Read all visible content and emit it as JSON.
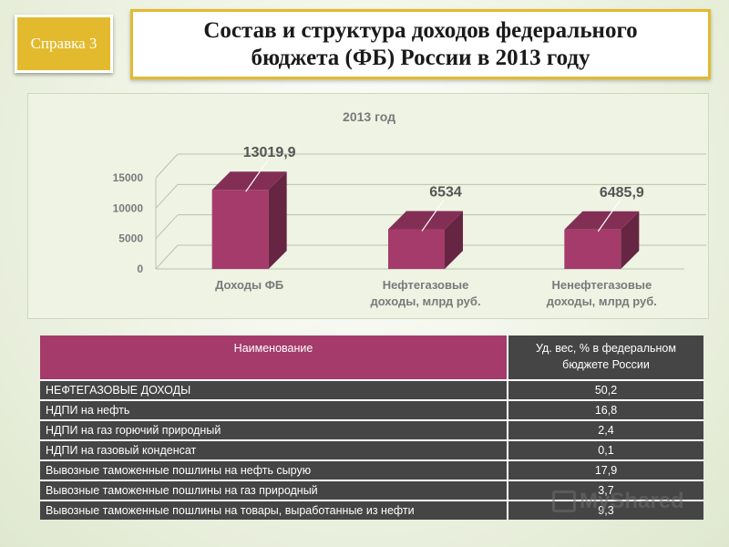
{
  "badge": {
    "label": "Справка 3"
  },
  "title": {
    "line1": "Состав и структура доходов федерального",
    "line2": "бюджета (ФБ) России в 2013 году"
  },
  "chart_data": {
    "type": "bar",
    "title": "2013 год",
    "categories": [
      [
        "Доходы ФБ"
      ],
      [
        "Нефтегазовые",
        "доходы, млрд руб."
      ],
      [
        "Ненефтегазовые",
        "доходы, млрд руб."
      ]
    ],
    "values": [
      13019.9,
      6534,
      6485.9
    ],
    "data_labels": [
      "13019,9",
      "6534",
      "6485,9"
    ],
    "yticks": [
      0,
      5000,
      10000,
      15000
    ],
    "ylim": [
      0,
      15000
    ],
    "bar_color": "#a43b6a",
    "grid": true
  },
  "table": {
    "header": {
      "name": "Наименование",
      "value_line1": "Уд. вес, % в федеральном",
      "value_line2": "бюджете России"
    },
    "rows": [
      {
        "name": "НЕФТЕГАЗОВЫЕ ДОХОДЫ",
        "value": "50,2"
      },
      {
        "name": "НДПИ на нефть",
        "value": "16,8"
      },
      {
        "name": "НДПИ на газ горючий природный",
        "value": "2,4"
      },
      {
        "name": "НДПИ на газовый конденсат",
        "value": "0,1"
      },
      {
        "name": "Вывозные таможенные пошлины на нефть сырую",
        "value": "17,9"
      },
      {
        "name": "Вывозные таможенные пошлины на газ природный",
        "value": "3,7"
      },
      {
        "name": "Вывозные таможенные пошлины на товары, выработанные из нефти",
        "value": "9,3"
      }
    ]
  },
  "watermark": {
    "text": "MyShared"
  }
}
